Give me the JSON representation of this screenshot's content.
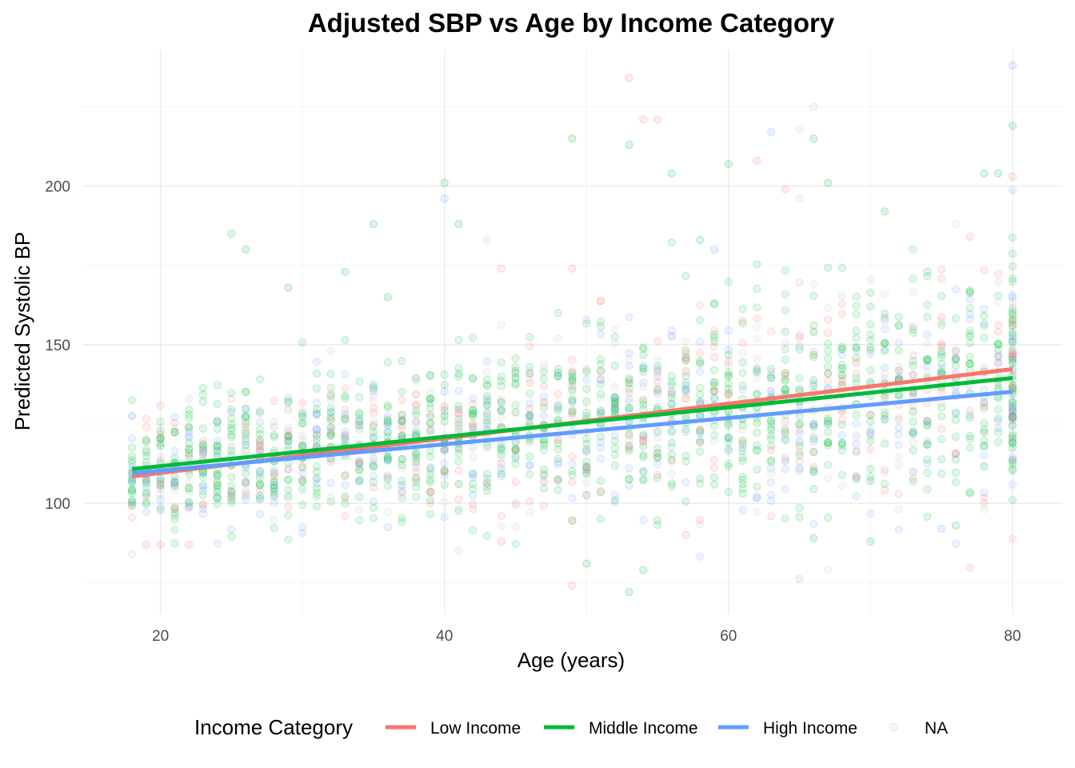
{
  "chart_data": {
    "type": "scatter",
    "title": "Adjusted SBP vs Age by Income Category",
    "xlabel": "Age (years)",
    "ylabel": "Predicted Systolic BP",
    "xlim": [
      14.5,
      83.5
    ],
    "ylim": [
      65,
      243
    ],
    "x_ticks": [
      20,
      40,
      60,
      80
    ],
    "y_ticks": [
      100,
      150,
      200
    ],
    "grid": true,
    "legend": {
      "title": "Income Category",
      "position": "bottom",
      "entries": [
        {
          "label": "Low Income",
          "color": "#F8766D",
          "kind": "line"
        },
        {
          "label": "Middle Income",
          "color": "#00BA38",
          "kind": "line"
        },
        {
          "label": "High Income",
          "color": "#619CFF",
          "kind": "line"
        },
        {
          "label": "NA",
          "color": "#BEBEBE",
          "kind": "point"
        }
      ]
    },
    "series": [
      {
        "name": "Low Income",
        "color": "#F8766D",
        "trend": {
          "x": [
            18,
            80
          ],
          "y": [
            108.5,
            142.3
          ]
        }
      },
      {
        "name": "Middle Income",
        "color": "#00BA38",
        "trend": {
          "x": [
            18,
            80
          ],
          "y": [
            110.8,
            139.5
          ]
        }
      },
      {
        "name": "High Income",
        "color": "#619CFF",
        "trend": {
          "x": [
            18,
            80
          ],
          "y": [
            109.5,
            135.2
          ]
        }
      },
      {
        "name": "NA",
        "color": "#BEBEBE"
      }
    ],
    "outliers": [
      {
        "x": 53,
        "y": 234,
        "s": 0
      },
      {
        "x": 80,
        "y": 238,
        "s": 2
      },
      {
        "x": 66,
        "y": 225,
        "s": 3
      },
      {
        "x": 54,
        "y": 221,
        "s": 0
      },
      {
        "x": 55,
        "y": 221,
        "s": 0
      },
      {
        "x": 49,
        "y": 215,
        "s": 1
      },
      {
        "x": 53,
        "y": 213,
        "s": 1
      },
      {
        "x": 80,
        "y": 219,
        "s": 1
      },
      {
        "x": 63,
        "y": 217,
        "s": 2
      },
      {
        "x": 65,
        "y": 218,
        "s": 3
      },
      {
        "x": 66,
        "y": 215,
        "s": 1
      },
      {
        "x": 60,
        "y": 207,
        "s": 1
      },
      {
        "x": 62,
        "y": 208,
        "s": 0
      },
      {
        "x": 56,
        "y": 204,
        "s": 1
      },
      {
        "x": 40,
        "y": 201,
        "s": 1
      },
      {
        "x": 40,
        "y": 196,
        "s": 2
      },
      {
        "x": 64,
        "y": 199,
        "s": 0
      },
      {
        "x": 65,
        "y": 196,
        "s": 3
      },
      {
        "x": 67,
        "y": 201,
        "s": 1
      },
      {
        "x": 78,
        "y": 204,
        "s": 1
      },
      {
        "x": 79,
        "y": 204,
        "s": 1
      },
      {
        "x": 80,
        "y": 203,
        "s": 0
      },
      {
        "x": 71,
        "y": 192,
        "s": 1
      },
      {
        "x": 25,
        "y": 185,
        "s": 1
      },
      {
        "x": 26,
        "y": 180,
        "s": 1
      },
      {
        "x": 35,
        "y": 188,
        "s": 1
      },
      {
        "x": 41,
        "y": 188,
        "s": 1
      },
      {
        "x": 43,
        "y": 183,
        "s": 3
      },
      {
        "x": 49,
        "y": 174,
        "s": 0
      },
      {
        "x": 58,
        "y": 183,
        "s": 1
      },
      {
        "x": 59,
        "y": 180,
        "s": 2
      },
      {
        "x": 29,
        "y": 168,
        "s": 1
      },
      {
        "x": 33,
        "y": 173,
        "s": 1
      },
      {
        "x": 36,
        "y": 165,
        "s": 1
      },
      {
        "x": 44,
        "y": 174,
        "s": 0
      },
      {
        "x": 49,
        "y": 74,
        "s": 0
      },
      {
        "x": 50,
        "y": 81,
        "s": 1
      },
      {
        "x": 53,
        "y": 72,
        "s": 1
      },
      {
        "x": 54,
        "y": 79,
        "s": 1
      },
      {
        "x": 41,
        "y": 85,
        "s": 3
      },
      {
        "x": 18,
        "y": 84,
        "s": 3
      },
      {
        "x": 19,
        "y": 87,
        "s": 0
      },
      {
        "x": 20,
        "y": 87,
        "s": 0
      },
      {
        "x": 22,
        "y": 87,
        "s": 0
      },
      {
        "x": 70,
        "y": 88,
        "s": 1
      },
      {
        "x": 76,
        "y": 93,
        "s": 1
      },
      {
        "x": 75,
        "y": 92,
        "s": 2
      },
      {
        "x": 66,
        "y": 89,
        "s": 1
      },
      {
        "x": 57,
        "y": 90,
        "s": 0
      },
      {
        "x": 44,
        "y": 88,
        "s": 0
      }
    ]
  }
}
